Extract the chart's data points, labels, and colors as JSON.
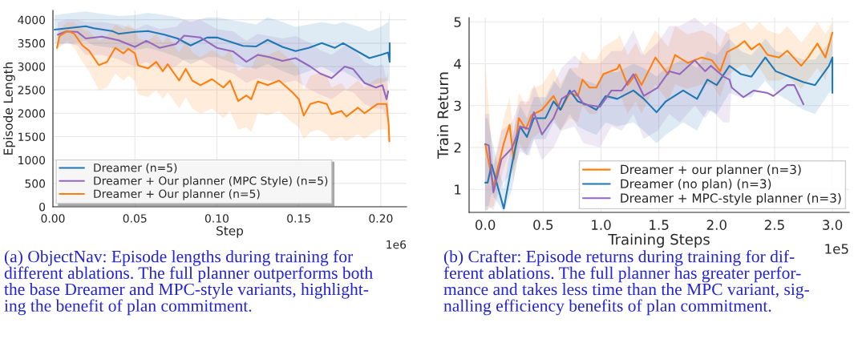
{
  "chart_data": [
    {
      "type": "line",
      "xlabel": "Step",
      "ylabel": "Episode Length",
      "xlim": [
        0,
        0.2157
      ],
      "ylim": [
        0,
        4200
      ],
      "xticks": [
        {
          "value": 0,
          "label": "0.00"
        },
        0.05,
        {
          "value": 0.1,
          "label": "0.10"
        },
        0.15,
        {
          "value": 0.2,
          "label": "0.20"
        }
      ],
      "yticks": [
        0,
        500,
        1000,
        1500,
        2000,
        2500,
        3000,
        3500,
        4000
      ],
      "grid": true,
      "legend": "bottom left",
      "annotations": [
        "1e6",
        "(a) ObjectNav: Episode lengths during training for\ndifferent ablations. The full planner outperforms both\nthe base Dreamer and MPC-style variants, highlight-\ning the benefit of plan commitment."
      ],
      "series": [
        {
          "name": "Dreamer (n=5)",
          "color": "#1f77b4",
          "x": [
            0.001,
            0.012,
            0.02,
            0.025,
            0.036,
            0.04,
            0.05,
            0.058,
            0.068,
            0.076,
            0.084,
            0.094,
            0.1,
            0.108,
            0.116,
            0.124,
            0.131,
            0.14,
            0.148,
            0.156,
            0.164,
            0.172,
            0.177,
            0.187,
            0.193,
            0.2,
            0.2045,
            0.2054,
            0.2054
          ],
          "values": [
            3790,
            3830,
            3860,
            3820,
            3760,
            3700,
            3740,
            3760,
            3680,
            3600,
            3450,
            3620,
            3620,
            3530,
            3440,
            3430,
            3570,
            3420,
            3330,
            3400,
            3500,
            3400,
            3500,
            3300,
            3180,
            3250,
            3300,
            3100,
            3500
          ],
          "lower": [
            3500,
            3500,
            3550,
            3450,
            3400,
            3350,
            3350,
            3400,
            3300,
            3200,
            3050,
            3200,
            3200,
            3100,
            3000,
            2950,
            3050,
            2900,
            2800,
            2900,
            3000,
            2850,
            2900,
            2700,
            2600,
            2650,
            2700,
            2600,
            2600
          ],
          "upper": [
            4100,
            4150,
            4180,
            4150,
            4100,
            4080,
            4100,
            4150,
            4100,
            4050,
            3950,
            4050,
            4050,
            4000,
            3950,
            3900,
            4050,
            3950,
            3850,
            3900,
            3950,
            3900,
            3950,
            3850,
            3750,
            3850,
            3950,
            4150,
            4150
          ]
        },
        {
          "name": "Dreamer + Our planner (MPC Style) (n=5)",
          "color": "#9467bd",
          "x": [
            0.003,
            0.008,
            0.015,
            0.02,
            0.03,
            0.04,
            0.05,
            0.057,
            0.065,
            0.075,
            0.08,
            0.09,
            0.1,
            0.11,
            0.118,
            0.125,
            0.132,
            0.14,
            0.148,
            0.157,
            0.163,
            0.17,
            0.178,
            0.183,
            0.19,
            0.197,
            0.201,
            0.2035,
            0.2045
          ],
          "values": [
            3680,
            3750,
            3740,
            3600,
            3640,
            3560,
            3420,
            3550,
            3400,
            3480,
            3660,
            3620,
            3400,
            3320,
            3100,
            3250,
            3200,
            3120,
            3180,
            3000,
            2850,
            2750,
            3000,
            2950,
            2650,
            2550,
            2600,
            2300,
            2470
          ],
          "lower": [
            3400,
            3500,
            3450,
            3250,
            3250,
            3150,
            3000,
            3100,
            2950,
            3000,
            3150,
            3150,
            2950,
            2850,
            2650,
            2750,
            2700,
            2650,
            2700,
            2500,
            2400,
            2300,
            2500,
            2450,
            2200,
            2100,
            2100,
            1900,
            2000
          ],
          "upper": [
            3950,
            4000,
            4000,
            3950,
            3950,
            3900,
            3800,
            3900,
            3800,
            3850,
            4000,
            4000,
            3800,
            3750,
            3550,
            3700,
            3650,
            3600,
            3650,
            3500,
            3350,
            3250,
            3450,
            3400,
            3100,
            3000,
            3050,
            2750,
            2900
          ]
        },
        {
          "name": "Dreamer + Our planner (n=5)",
          "color": "#ff7f0e",
          "x": [
            0.0025,
            0.004,
            0.009,
            0.013,
            0.018,
            0.022,
            0.028,
            0.033,
            0.038,
            0.043,
            0.046,
            0.05,
            0.052,
            0.058,
            0.063,
            0.067,
            0.07,
            0.077,
            0.081,
            0.085,
            0.09,
            0.097,
            0.104,
            0.108,
            0.113,
            0.118,
            0.121,
            0.125,
            0.131,
            0.138,
            0.146,
            0.15,
            0.153,
            0.157,
            0.162,
            0.167,
            0.17,
            0.176,
            0.179,
            0.186,
            0.19,
            0.198,
            0.2035,
            0.2048,
            0.2052
          ],
          "values": [
            3400,
            3650,
            3760,
            3700,
            3450,
            3340,
            3030,
            3100,
            3400,
            3280,
            3380,
            3280,
            3020,
            2960,
            3100,
            2900,
            3050,
            2700,
            2950,
            2700,
            2600,
            2730,
            2550,
            2700,
            2260,
            2380,
            2300,
            2680,
            2600,
            2700,
            2450,
            2300,
            1950,
            2200,
            2250,
            2200,
            1980,
            2050,
            1930,
            2120,
            2000,
            2200,
            2200,
            1750,
            1400
          ],
          "lower": [
            3300,
            3450,
            3550,
            3400,
            3100,
            2900,
            2500,
            2550,
            2850,
            2700,
            2800,
            2700,
            2400,
            2350,
            2500,
            2300,
            2450,
            2100,
            2350,
            2100,
            2000,
            2100,
            1900,
            2050,
            1650,
            1700,
            1600,
            2000,
            1950,
            2050,
            1800,
            1700,
            1450,
            1600,
            1650,
            1550,
            1400,
            1500,
            1400,
            1550,
            1450,
            1650,
            1650,
            1300,
            1050
          ],
          "upper": [
            3500,
            3800,
            3950,
            3950,
            3800,
            3750,
            3550,
            3650,
            3900,
            3800,
            3900,
            3800,
            3600,
            3550,
            3700,
            3500,
            3650,
            3300,
            3550,
            3300,
            3200,
            3350,
            3200,
            3350,
            2900,
            3000,
            2950,
            3300,
            3250,
            3350,
            3100,
            2950,
            2500,
            2800,
            2850,
            2800,
            2550,
            2650,
            2500,
            2700,
            2550,
            2750,
            2750,
            2200,
            1750
          ]
        }
      ]
    },
    {
      "type": "line",
      "xlabel": "Training Steps",
      "ylabel": "Train Return",
      "xlim": [
        -0.14,
        3.145
      ],
      "ylim": [
        0.45,
        5.1
      ],
      "xticks": [
        {
          "value": 0,
          "label": "0.0"
        },
        0.5,
        {
          "value": 1,
          "label": "1.0"
        },
        1.5,
        {
          "value": 2,
          "label": "2.0"
        },
        2.5,
        {
          "value": 3,
          "label": "3.0"
        }
      ],
      "yticks": [
        1,
        2,
        3,
        4,
        5
      ],
      "grid": true,
      "legend": "bottom right",
      "annotations": [
        "1e5",
        "(b) Crafter: Episode returns during training for dif-\nferent ablations. The full planner has greater perfor-\nmance and takes less time than the MPC variant, sig-\nnalling efficiency benefits of plan commitment."
      ],
      "series": [
        {
          "name": "Dreamer + our planner (n=3)",
          "color": "#ff7f0e",
          "x": [
            0,
            0.07,
            0.16,
            0.21,
            0.245,
            0.29,
            0.35,
            0.4,
            0.49,
            0.59,
            0.65,
            0.73,
            0.8,
            0.84,
            0.9,
            0.96,
            1.02,
            1.14,
            1.16,
            1.23,
            1.3,
            1.35,
            1.47,
            1.58,
            1.64,
            1.75,
            1.87,
            1.96,
            2.03,
            2.09,
            2.18,
            2.24,
            2.3,
            2.37,
            2.44,
            2.54,
            2.61,
            2.73,
            2.79,
            2.87,
            2.94,
            3.0
          ],
          "values": [
            2.08,
            1.07,
            2.1,
            2.54,
            1.72,
            2.7,
            2.44,
            2.77,
            2.9,
            3.23,
            2.9,
            3.3,
            3.23,
            3.62,
            3.43,
            3.43,
            3.75,
            3.88,
            3.98,
            3.49,
            3.75,
            3.49,
            4.15,
            3.75,
            4.21,
            4.02,
            4.15,
            4.08,
            3.82,
            4.28,
            4.41,
            4.54,
            4.34,
            4.48,
            4.21,
            4.15,
            4.31,
            3.95,
            4.15,
            4.48,
            4.15,
            4.74
          ],
          "lower": [
            0.5,
            0.6,
            1.5,
            1.9,
            1.2,
            2.1,
            1.9,
            2.2,
            2.4,
            2.7,
            2.4,
            2.7,
            2.6,
            3.0,
            2.8,
            2.8,
            3.1,
            3.2,
            3.3,
            2.8,
            3.1,
            2.8,
            3.5,
            3.1,
            3.5,
            3.4,
            3.5,
            3.5,
            3.2,
            3.7,
            3.9,
            4.0,
            3.8,
            3.9,
            3.6,
            3.6,
            3.7,
            3.4,
            3.6,
            3.9,
            3.6,
            4.3
          ],
          "upper": [
            4.0,
            1.6,
            2.7,
            3.2,
            2.3,
            3.3,
            3.0,
            3.4,
            3.5,
            3.9,
            3.5,
            3.9,
            3.9,
            4.3,
            4.1,
            4.1,
            4.4,
            4.6,
            4.7,
            4.2,
            4.5,
            4.2,
            4.8,
            4.4,
            4.9,
            4.7,
            4.8,
            4.7,
            4.4,
            4.8,
            4.9,
            5.0,
            4.8,
            5.0,
            4.8,
            4.7,
            4.9,
            4.5,
            4.7,
            5.0,
            4.7,
            5.0
          ]
        },
        {
          "name": "Dreamer (no plan) (n=3)",
          "color": "#1f77b4",
          "x": [
            0,
            0.02,
            0.055,
            0.16,
            0.23,
            0.3,
            0.36,
            0.42,
            0.52,
            0.59,
            0.65,
            0.73,
            0.8,
            0.87,
            0.96,
            1.04,
            1.14,
            1.28,
            1.37,
            1.48,
            1.56,
            1.71,
            1.83,
            1.92,
            2.0,
            2.11,
            2.21,
            2.3,
            2.42,
            2.51,
            2.63,
            2.75,
            2.85,
            2.97,
            3.0,
            3.0
          ],
          "values": [
            1.16,
            1.16,
            1.59,
            0.54,
            1.59,
            2.5,
            2.25,
            2.7,
            2.7,
            3.1,
            2.9,
            3.36,
            3.1,
            3.03,
            2.9,
            3.23,
            3.16,
            3.36,
            3.16,
            2.84,
            3.1,
            3.36,
            3.16,
            3.62,
            3.49,
            3.95,
            3.75,
            3.69,
            4.15,
            3.82,
            3.69,
            3.56,
            3.49,
            3.95,
            4.15,
            3.3
          ],
          "lower": [
            0.5,
            0.5,
            0.9,
            0.46,
            1.0,
            2.0,
            1.8,
            2.2,
            2.2,
            2.6,
            2.4,
            2.8,
            2.5,
            2.4,
            2.3,
            2.6,
            2.5,
            2.6,
            2.4,
            2.1,
            2.3,
            2.6,
            2.4,
            2.9,
            2.8,
            3.3,
            3.2,
            3.2,
            3.6,
            3.3,
            3.1,
            2.9,
            2.8,
            3.3,
            3.4,
            3.0
          ],
          "upper": [
            2.7,
            2.7,
            2.2,
            1.0,
            2.2,
            3.0,
            2.7,
            3.2,
            3.2,
            3.6,
            3.4,
            3.9,
            3.7,
            3.6,
            3.5,
            3.8,
            3.8,
            4.0,
            3.9,
            3.7,
            3.9,
            4.1,
            3.9,
            4.3,
            4.2,
            4.6,
            4.3,
            4.2,
            4.6,
            4.3,
            4.2,
            4.1,
            4.1,
            4.5,
            4.8,
            4.8
          ]
        },
        {
          "name": "Dreamer + MPC-style planner (n=3)",
          "color": "#9467bd",
          "x": [
            0,
            0.03,
            0.07,
            0.14,
            0.23,
            0.3,
            0.38,
            0.42,
            0.49,
            0.59,
            0.66,
            0.77,
            0.85,
            0.99,
            1.09,
            1.18,
            1.28,
            1.37,
            1.49,
            1.59,
            1.68,
            1.81,
            1.9,
            1.95,
            2.06,
            2.11,
            2.13,
            2.23,
            2.32,
            2.44,
            2.49,
            2.61,
            2.67,
            2.75
          ],
          "values": [
            2.08,
            2.05,
            0.93,
            1.72,
            1.98,
            2.5,
            2.44,
            2.84,
            2.31,
            2.7,
            3.16,
            3.36,
            3.03,
            2.97,
            3.36,
            3.36,
            3.75,
            3.23,
            3.43,
            3.82,
            3.75,
            4.08,
            3.82,
            3.95,
            3.69,
            3.62,
            3.43,
            3.2,
            3.36,
            3.3,
            3.23,
            3.49,
            3.49,
            3.03
          ],
          "lower": [
            0.6,
            0.6,
            0.5,
            1.1,
            1.4,
            1.9,
            1.8,
            2.2,
            1.7,
            2.0,
            2.4,
            2.5,
            2.1,
            2.0,
            2.5,
            2.4,
            2.8,
            2.2,
            2.4,
            2.8,
            2.6,
            3.0,
            2.7,
            2.9,
            2.6,
            2.6,
            3.43,
            3.2,
            3.36,
            3.3,
            3.23,
            3.49,
            3.49,
            3.03
          ],
          "upper": [
            2.8,
            2.8,
            1.5,
            2.4,
            2.6,
            3.1,
            3.1,
            3.5,
            3.0,
            3.5,
            3.9,
            4.2,
            4.0,
            4.0,
            4.3,
            4.3,
            4.8,
            4.2,
            4.5,
            4.9,
            4.9,
            5.1,
            4.9,
            5.0,
            4.8,
            4.7,
            3.43,
            3.2,
            3.36,
            3.3,
            3.23,
            3.49,
            3.49,
            3.03
          ]
        }
      ]
    }
  ]
}
